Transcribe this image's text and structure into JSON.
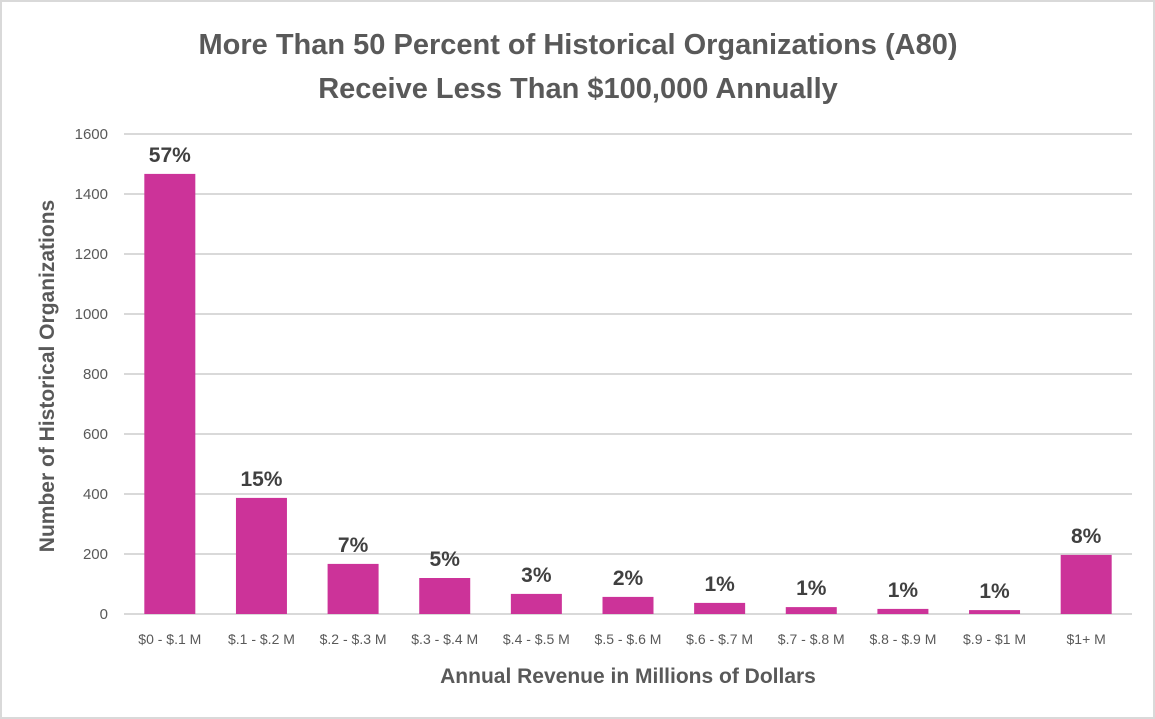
{
  "chart_data": {
    "type": "bar",
    "title": [
      "More Than 50 Percent of Historical Organizations (A80)",
      "Receive Less Than $100,000 Annually"
    ],
    "xlabel": "Annual Revenue in Millions of Dollars",
    "ylabel": "Number of Historical Organizations",
    "ylim": [
      0,
      1600
    ],
    "yticks": [
      0,
      200,
      400,
      600,
      800,
      1000,
      1200,
      1400,
      1600
    ],
    "grid": true,
    "legend": "none",
    "categories": [
      "$0 - $.1 M",
      "$.1 - $.2 M",
      "$.2 - $.3 M",
      "$.3 - $.4 M",
      "$.4 - $.5 M",
      "$.5 - $.6 M",
      "$.6 - $.7 M",
      "$.7 - $.8 M",
      "$.8 - $.9 M",
      "$.9 - $1 M",
      "$1+ M"
    ],
    "values": [
      1467,
      387,
      167,
      120,
      67,
      57,
      37,
      23,
      17,
      13,
      197
    ],
    "data_labels": [
      "57%",
      "15%",
      "7%",
      "5%",
      "3%",
      "2%",
      "1%",
      "1%",
      "1%",
      "1%",
      "8%"
    ],
    "colors": {
      "bar": "#cc3399",
      "grid": "#d9d9d9",
      "text": "#595959",
      "label": "#404040"
    }
  }
}
